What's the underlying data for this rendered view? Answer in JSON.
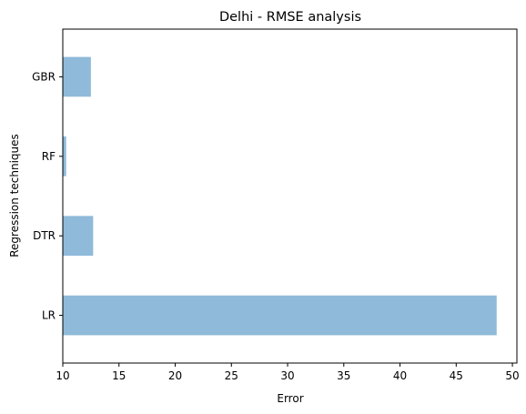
{
  "chart_data": {
    "type": "bar",
    "orientation": "horizontal",
    "title": "Delhi - RMSE analysis",
    "xlabel": "Error",
    "ylabel": "Regression techniques",
    "categories": [
      "LR",
      "DTR",
      "RF",
      "GBR"
    ],
    "values": [
      48.6,
      12.7,
      10.3,
      12.5
    ],
    "xlim": [
      10,
      50.4
    ],
    "xticks": [
      10,
      15,
      20,
      25,
      30,
      35,
      40,
      45,
      50
    ],
    "grid": false,
    "bar_color": "#8fbad9"
  }
}
